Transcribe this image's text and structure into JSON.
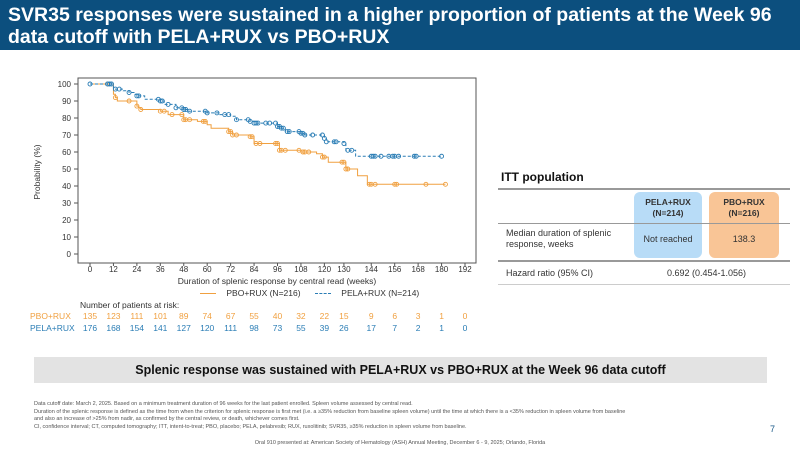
{
  "title": "SVR35 responses were sustained in a higher proportion of patients at the Week 96 data cutoff with PELA+RUX vs PBO+RUX",
  "chart_data": {
    "type": "line",
    "subtype": "kaplan-meier step",
    "xlabel": "Duration of splenic response by central read (weeks)",
    "ylabel": "Probability (%)",
    "xlim": [
      0,
      192
    ],
    "ylim": [
      0,
      100
    ],
    "xticks": [
      "0",
      "12",
      "24",
      "36",
      "48",
      "60",
      "72",
      "84",
      "96",
      "108",
      "120",
      "130",
      "144",
      "156",
      "168",
      "180",
      "192"
    ],
    "yticks": [
      "0",
      "10",
      "20",
      "30",
      "40",
      "50",
      "60",
      "70",
      "80",
      "90",
      "100"
    ],
    "grid": false,
    "legend_position": "bottom",
    "series": [
      {
        "name": "PBO+RUX (N=216)",
        "color": "#f0a040",
        "style": "solid",
        "points": [
          [
            0,
            100
          ],
          [
            8,
            100
          ],
          [
            12,
            94
          ],
          [
            13,
            92
          ],
          [
            14,
            90
          ],
          [
            24,
            87
          ],
          [
            25,
            86
          ],
          [
            26,
            85
          ],
          [
            36,
            84
          ],
          [
            40,
            82
          ],
          [
            48,
            79
          ],
          [
            55,
            78
          ],
          [
            60,
            76
          ],
          [
            62,
            74
          ],
          [
            71,
            72
          ],
          [
            73,
            70
          ],
          [
            82,
            69
          ],
          [
            84,
            65
          ],
          [
            97,
            61
          ],
          [
            108,
            60
          ],
          [
            116,
            59
          ],
          [
            119,
            57
          ],
          [
            122,
            54
          ],
          [
            131,
            50
          ],
          [
            137,
            46
          ],
          [
            142,
            41
          ],
          [
            182,
            41
          ]
        ],
        "censored": [
          9,
          13,
          20,
          24,
          26,
          36,
          38,
          42,
          47,
          48,
          49,
          51,
          58,
          59,
          71,
          72,
          73,
          75,
          82,
          83,
          85,
          87,
          95,
          96,
          97,
          98,
          100,
          107,
          109,
          110,
          112,
          119,
          120,
          129,
          130,
          131,
          132,
          143,
          144,
          146,
          156,
          157,
          172,
          182
        ]
      },
      {
        "name": "PELA+RUX (N=214)",
        "color": "#2a7db5",
        "style": "dashed",
        "points": [
          [
            0,
            100
          ],
          [
            11,
            100
          ],
          [
            12,
            97
          ],
          [
            17,
            96
          ],
          [
            20,
            95
          ],
          [
            23,
            94
          ],
          [
            24,
            93
          ],
          [
            28,
            91
          ],
          [
            36,
            90
          ],
          [
            38,
            88
          ],
          [
            44,
            86
          ],
          [
            48,
            85
          ],
          [
            50,
            84
          ],
          [
            60,
            83
          ],
          [
            66,
            82
          ],
          [
            72,
            81
          ],
          [
            75,
            79
          ],
          [
            82,
            78
          ],
          [
            84,
            77
          ],
          [
            96,
            75
          ],
          [
            98,
            74
          ],
          [
            100,
            72
          ],
          [
            108,
            71
          ],
          [
            110,
            70
          ],
          [
            120,
            68
          ],
          [
            121,
            66
          ],
          [
            130,
            65
          ],
          [
            131,
            61
          ],
          [
            136,
            57.5
          ],
          [
            180,
            57.5
          ]
        ],
        "censored": [
          0,
          9,
          10,
          11,
          13,
          15,
          20,
          24,
          25,
          35,
          36,
          37,
          40,
          44,
          47,
          48,
          49,
          51,
          59,
          60,
          65,
          69,
          71,
          75,
          81,
          82,
          84,
          85,
          86,
          90,
          92,
          95,
          96,
          97,
          98,
          99,
          101,
          102,
          107,
          108,
          109,
          110,
          114,
          119,
          120,
          121,
          125,
          126,
          130,
          132,
          134,
          144,
          145,
          146,
          149,
          153,
          155,
          156,
          158,
          166,
          167,
          180
        ]
      }
    ],
    "risk_table": {
      "title": "Number of patients at risk:",
      "times": [
        0,
        12,
        24,
        36,
        48,
        60,
        72,
        84,
        96,
        108,
        120,
        130,
        144,
        156,
        168,
        180,
        192
      ],
      "rows": [
        {
          "label": "PBO+RUX",
          "color": "#f0a040",
          "values": [
            "135",
            "123",
            "111",
            "101",
            "89",
            "74",
            "67",
            "55",
            "40",
            "32",
            "22",
            "15",
            "9",
            "6",
            "3",
            "1",
            "0"
          ]
        },
        {
          "label": "PELA+RUX",
          "color": "#2a7db5",
          "values": [
            "176",
            "168",
            "154",
            "141",
            "127",
            "120",
            "111",
            "98",
            "73",
            "55",
            "39",
            "26",
            "17",
            "7",
            "2",
            "1",
            "0"
          ]
        }
      ]
    }
  },
  "itt": {
    "title": "ITT population",
    "col1": "PELA+RUX",
    "col1_n": "(N=214)",
    "col1_color": "#b8dcf7",
    "col2": "PBO+RUX",
    "col2_n": "(N=216)",
    "col2_color": "#f9c596",
    "row1_label_a": "Median duration of splenic",
    "row1_label_b": "response, weeks",
    "row1_v1": "Not reached",
    "row1_v2": "138.3",
    "row2_label": "Hazard ratio (95% CI)",
    "row2_value": "0.692 (0.454-1.056)"
  },
  "banner": "Splenic response was sustained with PELA+RUX vs PBO+RUX at the Week 96 data cutoff",
  "footnotes": [
    "Data cutoff date: March 2, 2025. Based on a minimum treatment duration of 96 weeks for the last patient enrolled. Spleen volume assessed by central read.",
    "Duration of the splenic response is defined as the time from when the criterion for splenic response is first met (i.e. a ≥35% reduction from baseline spleen volume) until the time at which there is a <35% reduction in spleen volume from baseline",
    "and also an increase of >25% from nadir, as confirmed by the central review, or death, whichever comes first.",
    "CI, confidence interval; CT, computed tomography; ITT, intent-to-treat; PBO, placebo; PELA, pelabresib; RUX, ruxolitinib; SVR35, ≥35% reduction in spleen volume from baseline."
  ],
  "page_number": "7",
  "presentation": "Oral 910 presented at: American Society of Hematology (ASH) Annual Meeting, December 6 - 9, 2025; Orlando, Florida"
}
